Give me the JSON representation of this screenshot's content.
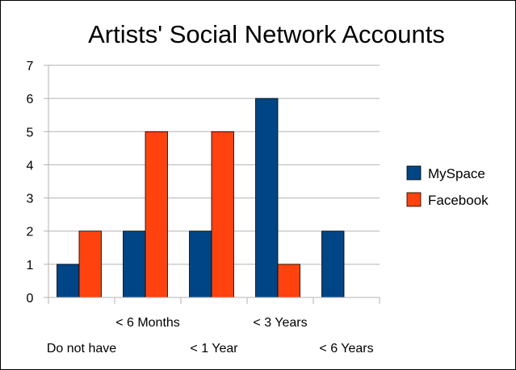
{
  "chart_data": {
    "type": "bar",
    "title": "Artists' Social Network Accounts",
    "xlabel": "",
    "ylabel": "",
    "categories": [
      "Do not have",
      "< 6 Months",
      "< 1 Year",
      "< 3 Years",
      "< 6 Years"
    ],
    "series": [
      {
        "name": "MySpace",
        "values": [
          1,
          2,
          2,
          6,
          2
        ],
        "color": "#004586"
      },
      {
        "name": "Facebook",
        "values": [
          2,
          5,
          5,
          1,
          0
        ],
        "color": "#ff420e"
      }
    ],
    "ylim": [
      0,
      7
    ],
    "yticks": [
      "0",
      "1",
      "2",
      "3",
      "4",
      "5",
      "6",
      "7"
    ],
    "grid": true,
    "legend": "right"
  }
}
